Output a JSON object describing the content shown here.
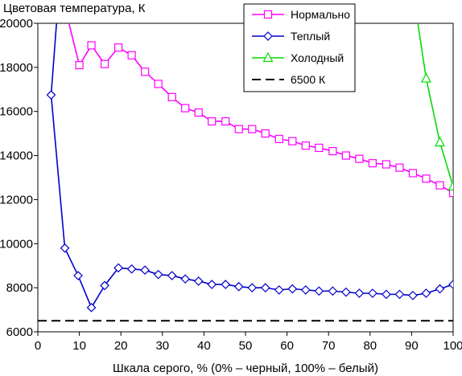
{
  "chart_data": {
    "type": "line",
    "ylabel": "Цветовая температура, К",
    "xlabel": "Шкала серого, % (0% – черный, 100% – белый)",
    "xlim": [
      0,
      100
    ],
    "ylim": [
      6000,
      20000
    ],
    "x_ticks": [
      "0",
      "10",
      "20",
      "30",
      "40",
      "50",
      "60",
      "70",
      "80",
      "90",
      "100"
    ],
    "y_ticks": [
      "6000",
      "8000",
      "10000",
      "12000",
      "14000",
      "16000",
      "18000",
      "20000"
    ],
    "grid": false,
    "legend_position": "top-right",
    "series": [
      {
        "name": "Нормально",
        "color": "#ff00ff",
        "marker": "square",
        "points": [
          [
            7.5,
            20000
          ],
          [
            10,
            18100
          ],
          [
            12.9,
            19000
          ],
          [
            16.1,
            18150
          ],
          [
            19.4,
            18900
          ],
          [
            22.6,
            18550
          ],
          [
            25.8,
            17800
          ],
          [
            29,
            17250
          ],
          [
            32.3,
            16650
          ],
          [
            35.5,
            16150
          ],
          [
            38.7,
            15950
          ],
          [
            41.9,
            15550
          ],
          [
            45.2,
            15550
          ],
          [
            48.4,
            15200
          ],
          [
            51.6,
            15200
          ],
          [
            54.8,
            15000
          ],
          [
            58.1,
            14750
          ],
          [
            61.3,
            14650
          ],
          [
            64.5,
            14450
          ],
          [
            67.7,
            14350
          ],
          [
            71,
            14200
          ],
          [
            74.2,
            14000
          ],
          [
            77.4,
            13850
          ],
          [
            80.6,
            13650
          ],
          [
            83.9,
            13600
          ],
          [
            87.1,
            13450
          ],
          [
            90.3,
            13200
          ],
          [
            93.5,
            12950
          ],
          [
            96.8,
            12650
          ],
          [
            100,
            12300
          ]
        ]
      },
      {
        "name": "Теплый",
        "color": "#0000cc",
        "marker": "diamond",
        "points": [
          [
            4.5,
            20000
          ],
          [
            3.2,
            16750
          ],
          [
            6.5,
            9800
          ],
          [
            9.7,
            8550
          ],
          [
            12.9,
            7100
          ],
          [
            16.1,
            8100
          ],
          [
            19.4,
            8900
          ],
          [
            22.6,
            8850
          ],
          [
            25.8,
            8800
          ],
          [
            29,
            8600
          ],
          [
            32.3,
            8550
          ],
          [
            35.5,
            8400
          ],
          [
            38.7,
            8300
          ],
          [
            41.9,
            8150
          ],
          [
            45.2,
            8150
          ],
          [
            48.4,
            8050
          ],
          [
            51.6,
            8000
          ],
          [
            54.8,
            8000
          ],
          [
            58.1,
            7900
          ],
          [
            61.3,
            7950
          ],
          [
            64.5,
            7900
          ],
          [
            67.7,
            7850
          ],
          [
            71,
            7850
          ],
          [
            74.2,
            7800
          ],
          [
            77.4,
            7750
          ],
          [
            80.6,
            7750
          ],
          [
            83.9,
            7700
          ],
          [
            87.1,
            7700
          ],
          [
            90.3,
            7650
          ],
          [
            93.5,
            7750
          ],
          [
            96.8,
            7950
          ],
          [
            100,
            8150
          ]
        ]
      },
      {
        "name": "Холодный",
        "color": "#00dd00",
        "marker": "triangle",
        "points": [
          [
            91.5,
            20000
          ],
          [
            93.5,
            17500
          ],
          [
            96.8,
            14600
          ],
          [
            100,
            12600
          ]
        ]
      },
      {
        "name": "6500 К",
        "color": "#000000",
        "marker": "none",
        "dashed": true,
        "points": [
          [
            0,
            6500
          ],
          [
            100,
            6500
          ]
        ]
      }
    ]
  }
}
